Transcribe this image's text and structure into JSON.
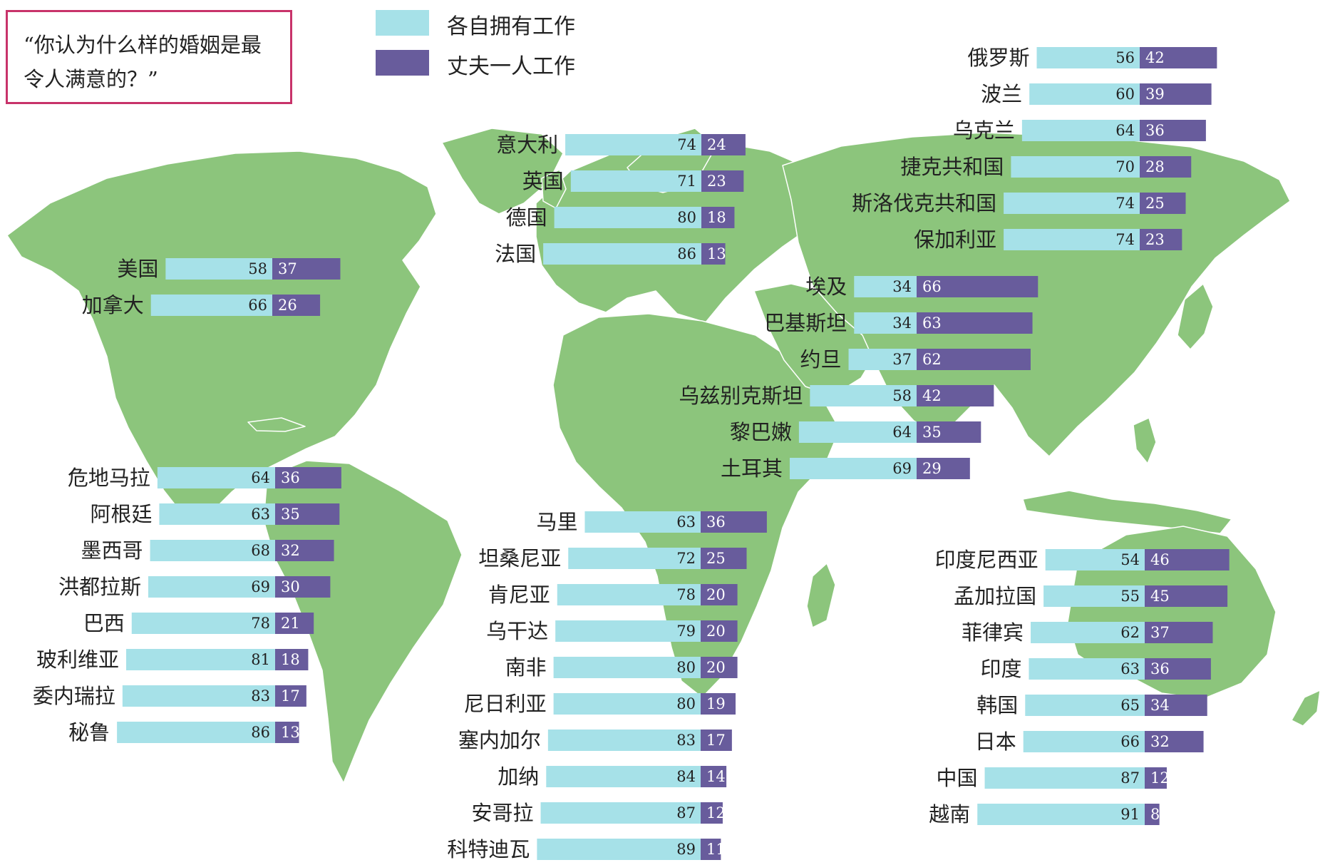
{
  "question": "“你认为什么样的婚姻是最令人满意的？”",
  "legend": [
    {
      "label": "各自拥有工作",
      "color": "#a6e1e8"
    },
    {
      "label": "丈夫一人工作",
      "color": "#685c9c"
    }
  ],
  "colors": {
    "map_land": "#8cc57c",
    "both_work": "#a6e1e8",
    "husband_works": "#685c9c"
  },
  "chart_data": {
    "type": "bar",
    "orientation": "horizontal-stacked",
    "series": [
      {
        "name": "各自拥有工作",
        "color": "#a6e1e8"
      },
      {
        "name": "丈夫一人工作",
        "color": "#685c9c"
      }
    ],
    "groups": [
      {
        "id": "north-america",
        "rows": [
          {
            "country": "美国",
            "both": 58,
            "husband": 37
          },
          {
            "country": "加拿大",
            "both": 66,
            "husband": 26
          }
        ]
      },
      {
        "id": "latin-america",
        "rows": [
          {
            "country": "危地马拉",
            "both": 64,
            "husband": 36
          },
          {
            "country": "阿根廷",
            "both": 63,
            "husband": 35
          },
          {
            "country": "墨西哥",
            "both": 68,
            "husband": 32
          },
          {
            "country": "洪都拉斯",
            "both": 69,
            "husband": 30
          },
          {
            "country": "巴西",
            "both": 78,
            "husband": 21
          },
          {
            "country": "玻利维亚",
            "both": 81,
            "husband": 18
          },
          {
            "country": "委内瑞拉",
            "both": 83,
            "husband": 17
          },
          {
            "country": "秘鲁",
            "both": 86,
            "husband": 13
          }
        ]
      },
      {
        "id": "western-europe",
        "rows": [
          {
            "country": "意大利",
            "both": 74,
            "husband": 24
          },
          {
            "country": "英国",
            "both": 71,
            "husband": 23
          },
          {
            "country": "德国",
            "both": 80,
            "husband": 18
          },
          {
            "country": "法国",
            "both": 86,
            "husband": 13
          }
        ]
      },
      {
        "id": "eastern-europe",
        "rows": [
          {
            "country": "俄罗斯",
            "both": 56,
            "husband": 42
          },
          {
            "country": "波兰",
            "both": 60,
            "husband": 39
          },
          {
            "country": "乌克兰",
            "both": 64,
            "husband": 36
          },
          {
            "country": "捷克共和国",
            "both": 70,
            "husband": 28
          },
          {
            "country": "斯洛伐克共和国",
            "both": 74,
            "husband": 25
          },
          {
            "country": "保加利亚",
            "both": 74,
            "husband": 23
          }
        ]
      },
      {
        "id": "middle-east",
        "rows": [
          {
            "country": "埃及",
            "both": 34,
            "husband": 66
          },
          {
            "country": "巴基斯坦",
            "both": 34,
            "husband": 63
          },
          {
            "country": "约旦",
            "both": 37,
            "husband": 62
          },
          {
            "country": "乌兹别克斯坦",
            "both": 58,
            "husband": 42
          },
          {
            "country": "黎巴嫩",
            "both": 64,
            "husband": 35
          },
          {
            "country": "土耳其",
            "both": 69,
            "husband": 29
          }
        ]
      },
      {
        "id": "africa",
        "rows": [
          {
            "country": "马里",
            "both": 63,
            "husband": 36
          },
          {
            "country": "坦桑尼亚",
            "both": 72,
            "husband": 25
          },
          {
            "country": "肯尼亚",
            "both": 78,
            "husband": 20
          },
          {
            "country": "乌干达",
            "both": 79,
            "husband": 20
          },
          {
            "country": "南非",
            "both": 80,
            "husband": 20
          },
          {
            "country": "尼日利亚",
            "both": 80,
            "husband": 19
          },
          {
            "country": "塞内加尔",
            "both": 83,
            "husband": 17
          },
          {
            "country": "加纳",
            "both": 84,
            "husband": 14
          },
          {
            "country": "安哥拉",
            "both": 87,
            "husband": 12
          },
          {
            "country": "科特迪瓦",
            "both": 89,
            "husband": 11
          }
        ]
      },
      {
        "id": "asia",
        "rows": [
          {
            "country": "印度尼西亚",
            "both": 54,
            "husband": 46
          },
          {
            "country": "孟加拉国",
            "both": 55,
            "husband": 45
          },
          {
            "country": "菲律宾",
            "both": 62,
            "husband": 37
          },
          {
            "country": "印度",
            "both": 63,
            "husband": 36
          },
          {
            "country": "韩国",
            "both": 65,
            "husband": 34
          },
          {
            "country": "日本",
            "both": 66,
            "husband": 32
          },
          {
            "country": "中国",
            "both": 87,
            "husband": 12
          },
          {
            "country": "越南",
            "both": 91,
            "husband": 8
          }
        ]
      }
    ]
  }
}
